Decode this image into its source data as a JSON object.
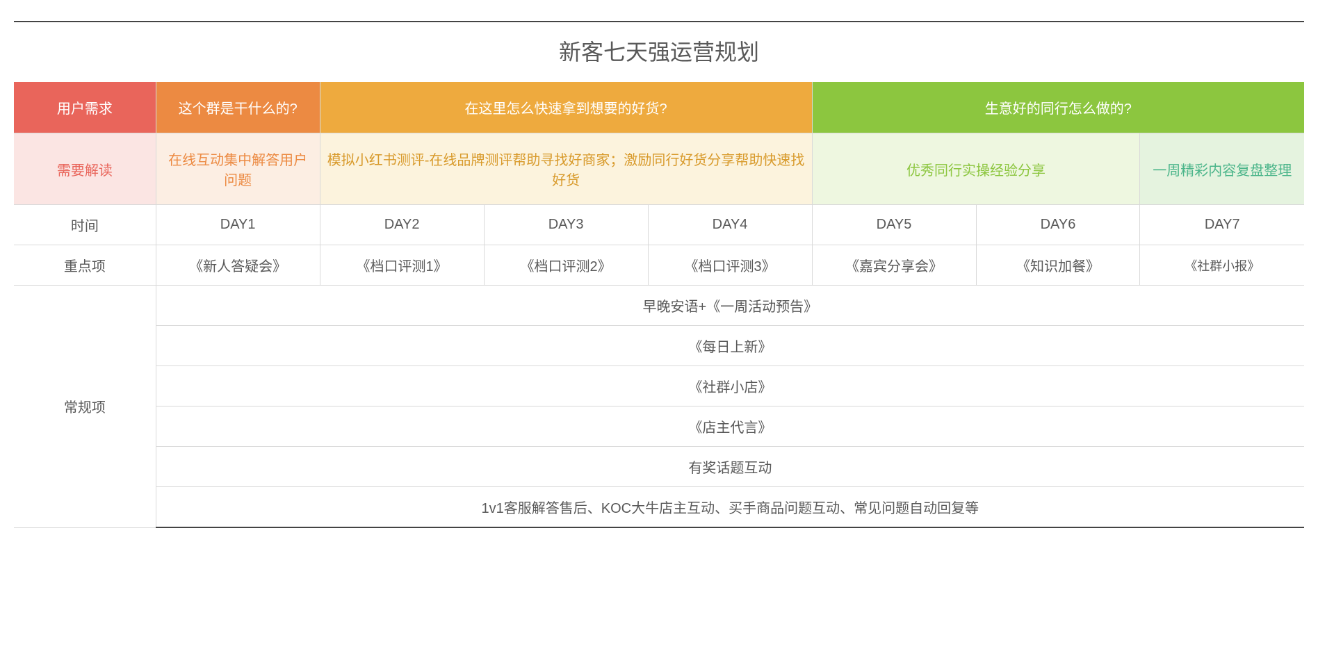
{
  "title": "新客七天强运营规划",
  "colors": {
    "red": "#e9655b",
    "orange1": "#ec8a42",
    "orange2": "#eeaa3e",
    "green1": "#8cc63f",
    "green2": "#6fb92c",
    "red_light": "#fbe5e3",
    "orange1_light": "#fceee3",
    "orange2_light": "#fcf3dd",
    "green1_light": "#eef7e0",
    "green2_light": "#e5f3df",
    "red_text": "#e9655b",
    "orange1_text": "#ec8a42",
    "orange2_text": "#d89a2b",
    "green1_text": "#8cc63f",
    "green2_text": "#4bb58a",
    "body_text": "#595959",
    "border": "#d9d9d9"
  },
  "header": {
    "label": "用户需求",
    "q1": "这个群是干什么的?",
    "q2": "在这里怎么快速拿到想要的好货?",
    "q3": "生意好的同行怎么做的?"
  },
  "interpret": {
    "label": "需要解读",
    "a1": "在线互动集中解答用户问题",
    "a2": "模拟小红书测评-在线品牌测评帮助寻找好商家；激励同行好货分享帮助快速找好货",
    "a3": "优秀同行实操经验分享",
    "a4": "一周精彩内容复盘整理"
  },
  "time": {
    "label": "时间",
    "days": [
      "DAY1",
      "DAY2",
      "DAY3",
      "DAY4",
      "DAY5",
      "DAY6",
      "DAY7"
    ]
  },
  "focus": {
    "label": "重点项",
    "items": [
      "《新人答疑会》",
      "《档口评测1》",
      "《档口评测2》",
      "《档口评测3》",
      "《嘉宾分享会》",
      "《知识加餐》",
      "《社群小报》"
    ]
  },
  "routine": {
    "label": "常规项",
    "rows": [
      "早晚安语+《一周活动预告》",
      "《每日上新》",
      "《社群小店》",
      "《店主代言》",
      "有奖话题互动",
      "1v1客服解答售后、KOC大牛店主互动、买手商品问题互动、常见问题自动回复等"
    ]
  },
  "layout": {
    "col0_width_pct": 11,
    "header_colspans": [
      1,
      3,
      3
    ],
    "interp_colspans": [
      1,
      3,
      2,
      1
    ]
  }
}
